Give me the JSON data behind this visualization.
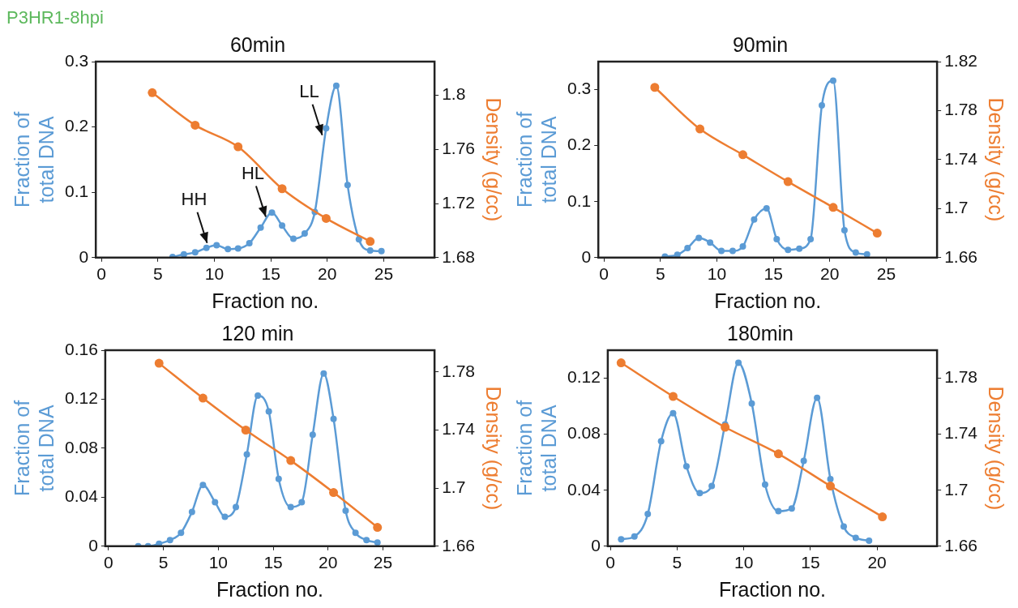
{
  "chart_data": [
    {
      "type": "line",
      "title": "60min",
      "xlabel": "Fraction no.",
      "ylabel": "Fraction of total DNA",
      "y2label": "Density (g/cc)",
      "annotations": [
        "P3HR1-8hpi",
        {
          "text": "HH",
          "x": 9.5,
          "y": 0.015
        },
        {
          "text": "HL",
          "x": 14.7,
          "y": 0.055
        },
        {
          "text": "LL",
          "x": 19.7,
          "y": 0.18
        }
      ],
      "xlim": [
        -0.5,
        29.5
      ],
      "xticks": [
        0,
        5,
        10,
        15,
        20,
        25
      ],
      "ylim": [
        0,
        0.3
      ],
      "yticks": [
        0,
        0.1,
        0.2,
        0.3
      ],
      "y2lim": [
        1.68,
        1.825
      ],
      "y2ticks": [
        1.68,
        1.72,
        1.76,
        1.8
      ],
      "grid": false,
      "legend": false,
      "marker": "circle",
      "series": [
        {
          "color": "#5b9bd5",
          "x": [
            6.3,
            7.3,
            8.3,
            9.3,
            10.2,
            11.2,
            12.1,
            13.1,
            14.1,
            15.1,
            16,
            17,
            18,
            18.9,
            19.9,
            20.8,
            21.8,
            22.8,
            23.8,
            24.8
          ],
          "values": [
            0.001,
            0.005,
            0.008,
            0.015,
            0.019,
            0.013,
            0.014,
            0.022,
            0.046,
            0.069,
            0.049,
            0.029,
            0.037,
            0.07,
            0.198,
            0.263,
            0.111,
            0.028,
            0.011,
            0.01
          ]
        },
        {
          "color": "#ed7d31",
          "axis": "y2",
          "x": [
            4.5,
            8.3,
            12.1,
            16,
            19.9,
            23.8
          ],
          "values": [
            1.802,
            1.778,
            1.762,
            1.731,
            1.709,
            1.692
          ]
        }
      ]
    },
    {
      "type": "line",
      "title": "90min",
      "xlabel": "Fraction no.",
      "ylabel": "Fraction of total DNA",
      "y2label": "Density (g/cc)",
      "xlim": [
        -0.5,
        29.5
      ],
      "xticks": [
        0,
        5,
        10,
        15,
        20,
        25
      ],
      "ylim": [
        0,
        0.35
      ],
      "yticks": [
        0,
        0.1,
        0.2,
        0.3
      ],
      "y2lim": [
        1.66,
        1.82
      ],
      "y2ticks": [
        1.66,
        1.7,
        1.74,
        1.78,
        1.82
      ],
      "grid": false,
      "legend": false,
      "marker": "circle",
      "series": [
        {
          "color": "#5b9bd5",
          "x": [
            5.4,
            6.5,
            7.4,
            8.4,
            9.4,
            10.4,
            11.4,
            12.3,
            13.3,
            14.4,
            15.3,
            16.3,
            17.3,
            18.3,
            19.3,
            20.3,
            21.3,
            22.3,
            23.3
          ],
          "values": [
            0.002,
            0.005,
            0.017,
            0.035,
            0.027,
            0.012,
            0.012,
            0.02,
            0.068,
            0.088,
            0.033,
            0.014,
            0.016,
            0.033,
            0.272,
            0.316,
            0.049,
            0.009,
            0.006
          ]
        },
        {
          "color": "#ed7d31",
          "axis": "y2",
          "x": [
            4.5,
            8.5,
            12.3,
            16.3,
            20.3,
            24.2
          ],
          "values": [
            1.799,
            1.765,
            1.744,
            1.722,
            1.701,
            1.68
          ]
        }
      ]
    },
    {
      "type": "line",
      "title": "120 min",
      "xlabel": "Fraction no.",
      "ylabel": "Fraction of total DNA",
      "y2label": "Density (g/cc)",
      "xlim": [
        -0.3,
        29.7
      ],
      "xticks": [
        0,
        5,
        10,
        15,
        20,
        25
      ],
      "ylim": [
        0,
        0.16
      ],
      "yticks": [
        0,
        0.04,
        0.08,
        0.12,
        0.16
      ],
      "y2lim": [
        1.66,
        1.795
      ],
      "y2ticks": [
        1.66,
        1.7,
        1.74,
        1.78
      ],
      "grid": false,
      "legend": false,
      "marker": "circle",
      "series": [
        {
          "color": "#5b9bd5",
          "x": [
            2.7,
            3.6,
            4.6,
            5.6,
            6.6,
            7.6,
            8.6,
            9.7,
            10.6,
            11.6,
            12.6,
            13.6,
            14.6,
            15.5,
            16.6,
            17.6,
            18.6,
            19.6,
            20.5,
            21.6,
            22.5,
            23.5,
            24.5
          ],
          "values": [
            0,
            0,
            0.002,
            0.005,
            0.011,
            0.028,
            0.05,
            0.036,
            0.024,
            0.032,
            0.075,
            0.123,
            0.11,
            0.055,
            0.032,
            0.036,
            0.091,
            0.141,
            0.104,
            0.029,
            0.011,
            0.005,
            0.003
          ]
        },
        {
          "color": "#ed7d31",
          "axis": "y2",
          "x": [
            4.6,
            8.6,
            12.5,
            16.6,
            20.5,
            24.5
          ],
          "values": [
            1.786,
            1.762,
            1.74,
            1.719,
            1.697,
            1.673
          ]
        }
      ]
    },
    {
      "type": "line",
      "title": "180min",
      "xlabel": "Fraction no.",
      "ylabel": "Fraction of total DNA",
      "y2label": "Density (g/cc)",
      "xlim": [
        -0.2,
        24.5
      ],
      "xticks": [
        0,
        5,
        10,
        15,
        20
      ],
      "ylim": [
        0,
        0.14
      ],
      "yticks": [
        0,
        0.04,
        0.08,
        0.12
      ],
      "y2lim": [
        1.66,
        1.8
      ],
      "y2ticks": [
        1.66,
        1.7,
        1.74,
        1.78
      ],
      "grid": false,
      "legend": false,
      "marker": "circle",
      "series": [
        {
          "color": "#5b9bd5",
          "x": [
            0.8,
            1.8,
            2.8,
            3.8,
            4.7,
            5.7,
            6.7,
            7.6,
            8.6,
            9.6,
            10.6,
            11.6,
            12.6,
            13.6,
            14.5,
            15.5,
            16.5,
            17.5,
            18.4,
            19.4
          ],
          "values": [
            0.005,
            0.007,
            0.023,
            0.075,
            0.095,
            0.057,
            0.038,
            0.043,
            0.087,
            0.131,
            0.102,
            0.044,
            0.025,
            0.027,
            0.061,
            0.106,
            0.048,
            0.014,
            0.006,
            0.004
          ]
        },
        {
          "color": "#ed7d31",
          "axis": "y2",
          "x": [
            0.8,
            4.7,
            8.6,
            12.6,
            16.5,
            20.4
          ],
          "values": [
            1.791,
            1.767,
            1.745,
            1.726,
            1.703,
            1.681
          ]
        }
      ]
    }
  ]
}
